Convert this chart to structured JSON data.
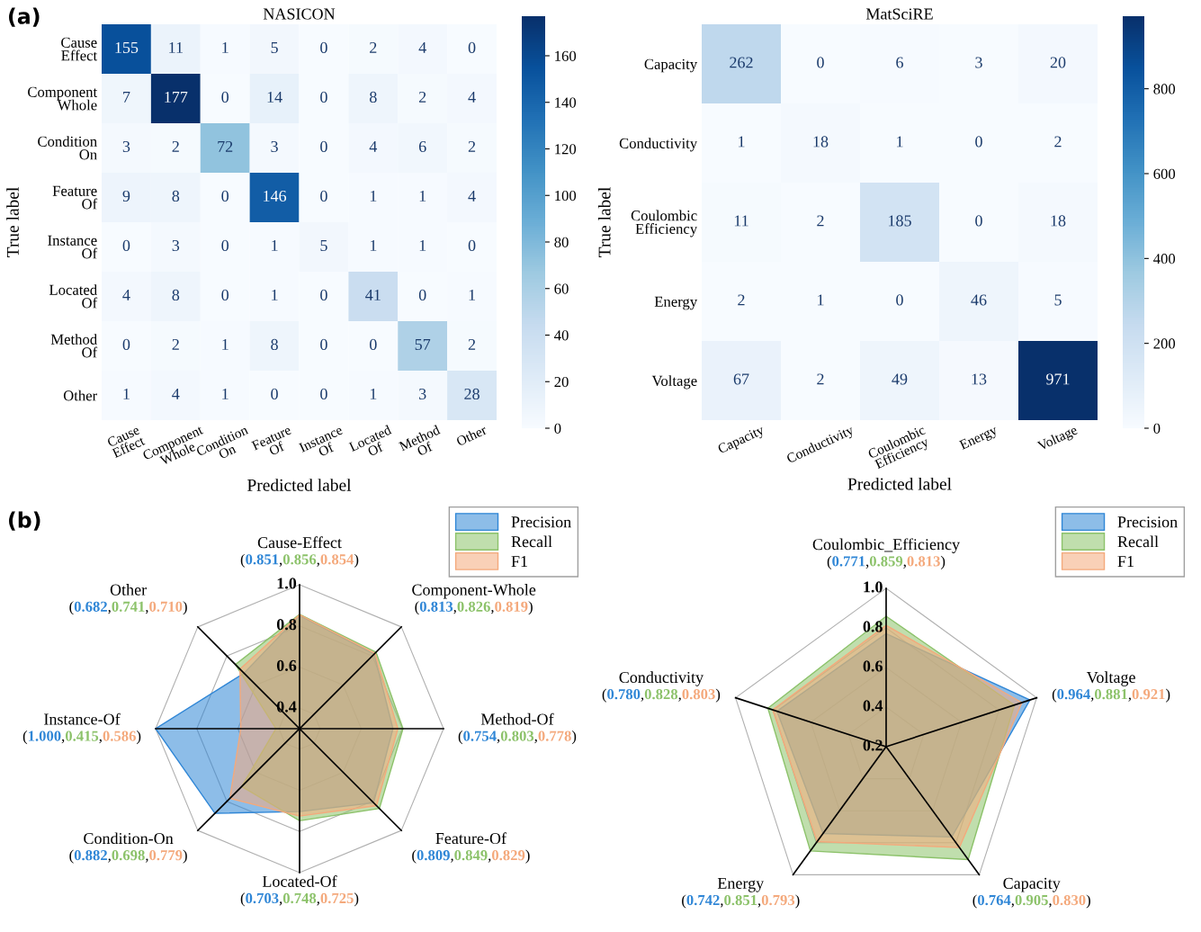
{
  "chart_data": [
    {
      "type": "heatmap",
      "title": "NASICON",
      "xlabel": "Predicted label",
      "ylabel": "True label",
      "annotations": [
        "(a)"
      ],
      "categories": [
        "Cause\nEffect",
        "Component\nWhole",
        "Condition\nOn",
        "Feature\nOf",
        "Instance\nOf",
        "Located\nOf",
        "Method\nOf",
        "Other"
      ],
      "y_categories": [
        "Cause\nEffect",
        "Component\nWhole",
        "Condition\nOn",
        "Feature\nOf",
        "Instance\nOf",
        "Located\nOf",
        "Method\nOf",
        "Other"
      ],
      "cells": [
        [
          155,
          11,
          1,
          5,
          0,
          2,
          4,
          0
        ],
        [
          7,
          177,
          0,
          14,
          0,
          8,
          2,
          4
        ],
        [
          3,
          2,
          72,
          3,
          0,
          4,
          6,
          2
        ],
        [
          9,
          8,
          0,
          146,
          0,
          1,
          1,
          4
        ],
        [
          0,
          3,
          0,
          1,
          5,
          1,
          1,
          0
        ],
        [
          4,
          8,
          0,
          1,
          0,
          41,
          0,
          1
        ],
        [
          0,
          2,
          1,
          8,
          0,
          0,
          57,
          2
        ],
        [
          1,
          4,
          1,
          0,
          0,
          1,
          3,
          28
        ]
      ],
      "clim": [
        0,
        177
      ],
      "cticks": [
        0,
        20,
        40,
        60,
        80,
        100,
        120,
        140,
        160
      ],
      "data_labels": true
    },
    {
      "type": "heatmap",
      "title": "MatSciRE",
      "xlabel": "Predicted label",
      "ylabel": "True label",
      "categories": [
        "Capacity",
        "Conductivity",
        "Coulombic\nEfficiency",
        "Energy",
        "Voltage"
      ],
      "y_categories": [
        "Capacity",
        "Conductivity",
        "Coulombic\nEfficiency",
        "Energy",
        "Voltage"
      ],
      "cells": [
        [
          262,
          0,
          6,
          3,
          20
        ],
        [
          1,
          18,
          1,
          0,
          2
        ],
        [
          11,
          2,
          185,
          0,
          18
        ],
        [
          2,
          1,
          0,
          46,
          5
        ],
        [
          67,
          2,
          49,
          13,
          971
        ]
      ],
      "clim": [
        0,
        971
      ],
      "cticks": [
        0,
        200,
        400,
        600,
        800
      ],
      "data_labels": true
    },
    {
      "type": "radar",
      "annotations": [
        "(b)",
        "(0.851,0.856,0.854)",
        "(0.813,0.826,0.819)",
        "(0.754,0.803,0.778)",
        "(0.809,0.849,0.829)",
        "(0.703,0.748,0.725)",
        "(0.882,0.698,0.779)",
        "(1.000,0.415,0.586)",
        "(0.682,0.741,0.710)"
      ],
      "categories": [
        "Cause-Effect",
        "Component-Whole",
        "Method-Of",
        "Feature-Of",
        "Located-Of",
        "Condition-On",
        "Instance-Of",
        "Other"
      ],
      "ylim": [
        0.3,
        1.0
      ],
      "yticks": [
        0.4,
        0.6,
        0.8,
        {
          "value": 1.0,
          "label": "1.0"
        }
      ],
      "grid": true,
      "legend": "top right",
      "series": [
        {
          "name": "Precision",
          "color": "#2f86d6",
          "values": [
            0.851,
            0.813,
            0.754,
            0.809,
            0.703,
            0.882,
            1.0,
            0.682
          ]
        },
        {
          "name": "Recall",
          "color": "#8cc26a",
          "values": [
            0.856,
            0.826,
            0.803,
            0.849,
            0.748,
            0.698,
            0.415,
            0.741
          ]
        },
        {
          "name": "F1",
          "color": "#f4a97c",
          "values": [
            0.854,
            0.819,
            0.778,
            0.829,
            0.725,
            0.779,
            0.586,
            0.71
          ]
        }
      ]
    },
    {
      "type": "radar",
      "annotations": [
        "(0.771,0.859,0.813)",
        "(0.964,0.881,0.921)",
        "(0.764,0.905,0.830)",
        "(0.742,0.851,0.793)",
        "(0.780,0.828,0.803)"
      ],
      "categories": [
        "Coulombic_Efficiency",
        "Voltage",
        "Capacity",
        "Energy",
        "Conductivity"
      ],
      "ylim": [
        0.2,
        1.0
      ],
      "yticks": [
        0.2,
        0.4,
        0.6,
        0.8,
        {
          "value": 1.0,
          "label": "1.0"
        }
      ],
      "grid": true,
      "legend": "top right",
      "series": [
        {
          "name": "Precision",
          "color": "#2f86d6",
          "values": [
            0.771,
            0.964,
            0.764,
            0.742,
            0.78
          ]
        },
        {
          "name": "Recall",
          "color": "#8cc26a",
          "values": [
            0.859,
            0.881,
            0.905,
            0.851,
            0.828
          ]
        },
        {
          "name": "F1",
          "color": "#f4a97c",
          "values": [
            0.813,
            0.921,
            0.83,
            0.793,
            0.803
          ]
        }
      ]
    }
  ]
}
